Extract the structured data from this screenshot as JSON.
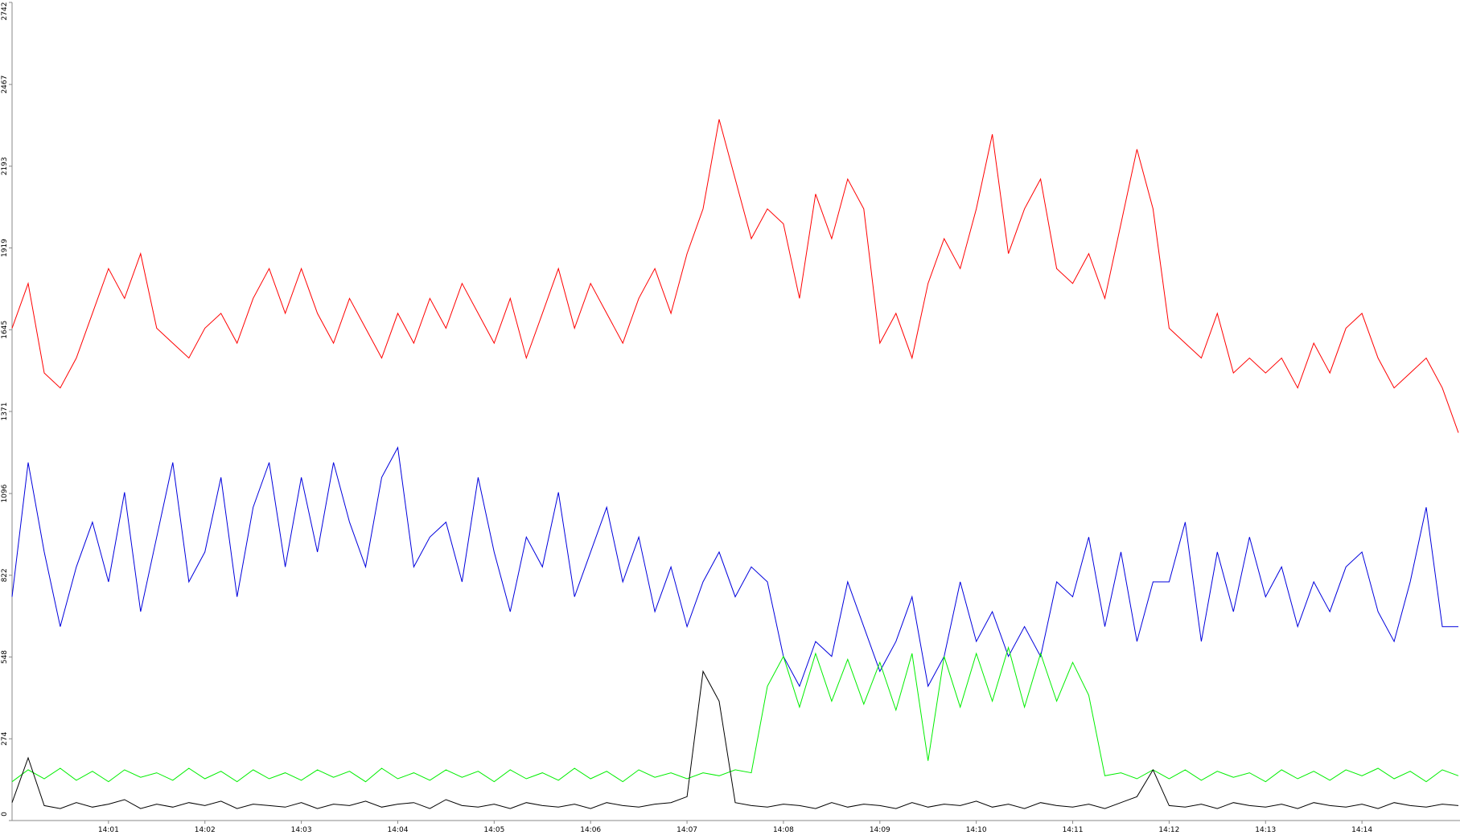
{
  "chart_data": {
    "type": "line",
    "categories": [
      null,
      null,
      null,
      null,
      null,
      null,
      "14:01",
      null,
      null,
      null,
      null,
      null,
      "14:02",
      null,
      null,
      null,
      null,
      null,
      "14:03",
      null,
      null,
      null,
      null,
      null,
      "14:04",
      null,
      null,
      null,
      null,
      null,
      "14:05",
      null,
      null,
      null,
      null,
      null,
      "14:06",
      null,
      null,
      null,
      null,
      null,
      "14:07",
      null,
      null,
      null,
      null,
      null,
      "14:08",
      null,
      null,
      null,
      null,
      null,
      "14:09",
      null,
      null,
      null,
      null,
      null,
      "14:10",
      null,
      null,
      null,
      null,
      null,
      "14:11",
      null,
      null,
      null,
      null,
      null,
      "14:12",
      null,
      null,
      null,
      null,
      null,
      "14:13",
      null,
      null,
      null,
      null,
      null,
      "14:14",
      null,
      null,
      null,
      null,
      null,
      null
    ],
    "ylim": [
      0,
      2742
    ],
    "yticks": [
      0,
      274,
      548,
      822,
      1096,
      1371,
      1645,
      1919,
      2193,
      2467,
      2742
    ],
    "series": [
      {
        "color": "#ff0000",
        "values": [
          1650,
          1800,
          1500,
          1450,
          1550,
          1700,
          1850,
          1750,
          1900,
          1650,
          1600,
          1550,
          1650,
          1700,
          1600,
          1750,
          1850,
          1700,
          1850,
          1700,
          1600,
          1750,
          1650,
          1550,
          1700,
          1600,
          1750,
          1650,
          1800,
          1700,
          1600,
          1750,
          1550,
          1700,
          1850,
          1650,
          1800,
          1700,
          1600,
          1750,
          1850,
          1700,
          1900,
          2050,
          2350,
          2150,
          1950,
          2050,
          2000,
          1750,
          2100,
          1950,
          2150,
          2050,
          1600,
          1700,
          1550,
          1800,
          1950,
          1850,
          2050,
          2300,
          1900,
          2050,
          2150,
          1850,
          1800,
          1900,
          1750,
          2000,
          2250,
          2050,
          1650,
          1600,
          1550,
          1700,
          1500,
          1550,
          1500,
          1550,
          1450,
          1600,
          1500,
          1650,
          1700,
          1550,
          1450,
          1500,
          1550,
          1450,
          1300
        ]
      },
      {
        "color": "#0000dd",
        "values": [
          750,
          1200,
          900,
          650,
          850,
          1000,
          800,
          1100,
          700,
          950,
          1200,
          800,
          900,
          1150,
          750,
          1050,
          1200,
          850,
          1150,
          900,
          1200,
          1000,
          850,
          1150,
          1250,
          850,
          950,
          1000,
          800,
          1150,
          900,
          700,
          950,
          850,
          1100,
          750,
          900,
          1050,
          800,
          950,
          700,
          850,
          650,
          800,
          900,
          750,
          850,
          800,
          550,
          450,
          600,
          550,
          800,
          650,
          500,
          600,
          750,
          450,
          550,
          800,
          600,
          700,
          550,
          650,
          550,
          800,
          750,
          950,
          650,
          900,
          600,
          800,
          800,
          1000,
          600,
          900,
          700,
          950,
          750,
          850,
          650,
          800,
          700,
          850,
          900,
          700,
          600,
          800,
          1050,
          650,
          650
        ]
      },
      {
        "color": "#00ee00",
        "values": [
          130,
          170,
          140,
          175,
          135,
          165,
          130,
          170,
          145,
          160,
          135,
          175,
          140,
          165,
          130,
          170,
          140,
          160,
          135,
          170,
          145,
          165,
          130,
          175,
          140,
          160,
          135,
          170,
          145,
          165,
          130,
          170,
          140,
          160,
          135,
          175,
          140,
          165,
          130,
          170,
          145,
          160,
          140,
          160,
          150,
          170,
          160,
          450,
          550,
          380,
          560,
          400,
          540,
          390,
          530,
          370,
          560,
          200,
          550,
          380,
          560,
          400,
          580,
          380,
          560,
          400,
          530,
          420,
          150,
          160,
          140,
          170,
          140,
          170,
          135,
          165,
          145,
          160,
          130,
          170,
          140,
          165,
          135,
          170,
          150,
          175,
          140,
          165,
          130,
          170,
          150
        ]
      },
      {
        "color": "#000000",
        "values": [
          60,
          210,
          50,
          40,
          60,
          45,
          55,
          70,
          40,
          55,
          45,
          60,
          50,
          65,
          40,
          55,
          50,
          45,
          60,
          40,
          55,
          50,
          65,
          45,
          55,
          60,
          40,
          70,
          50,
          45,
          55,
          40,
          60,
          50,
          45,
          55,
          40,
          60,
          50,
          45,
          55,
          60,
          80,
          500,
          400,
          60,
          50,
          45,
          55,
          50,
          40,
          60,
          45,
          55,
          50,
          40,
          60,
          45,
          55,
          50,
          65,
          45,
          55,
          40,
          60,
          50,
          45,
          55,
          40,
          60,
          80,
          170,
          50,
          45,
          55,
          40,
          60,
          50,
          45,
          55,
          40,
          60,
          50,
          45,
          55,
          40,
          60,
          50,
          45,
          55,
          50
        ]
      }
    ]
  }
}
